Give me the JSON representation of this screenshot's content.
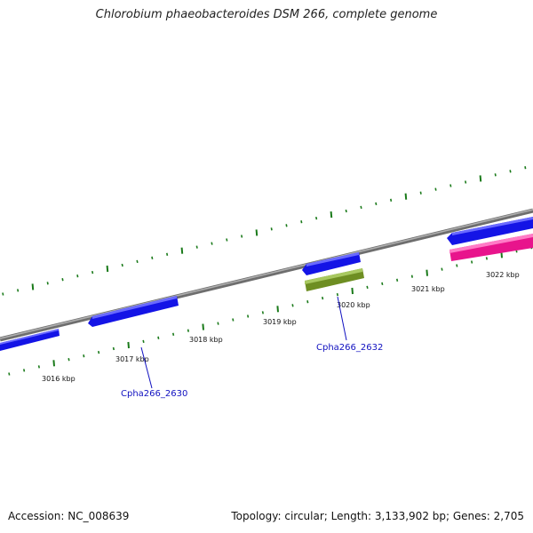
{
  "title": "Chlorobium phaeobacteroides DSM 266, complete genome",
  "footer": {
    "accession": "Accession: NC_008639",
    "summary": "Topology: circular; Length: 3,133,902 bp; Genes: 2,705"
  },
  "colors": {
    "backbone": "#8a8a8a",
    "tick": "#1a7a1a",
    "gene_forward": "#1414e6",
    "gene_reverse": "#1414e6",
    "gene_highlight": "#6e8e22",
    "gene_rna": "#e8148c",
    "label": "#1010c0"
  },
  "kbp_labels": [
    "3016 kbp",
    "3017 kbp",
    "3018 kbp",
    "3019 kbp",
    "3020 kbp",
    "3021 kbp",
    "3022 kbp"
  ],
  "gene_labels": [
    {
      "id": "gene-label-cpha266-2630",
      "text": "Cpha266_2630"
    },
    {
      "id": "gene-label-cpha266-2632",
      "text": "Cpha266_2632"
    }
  ]
}
